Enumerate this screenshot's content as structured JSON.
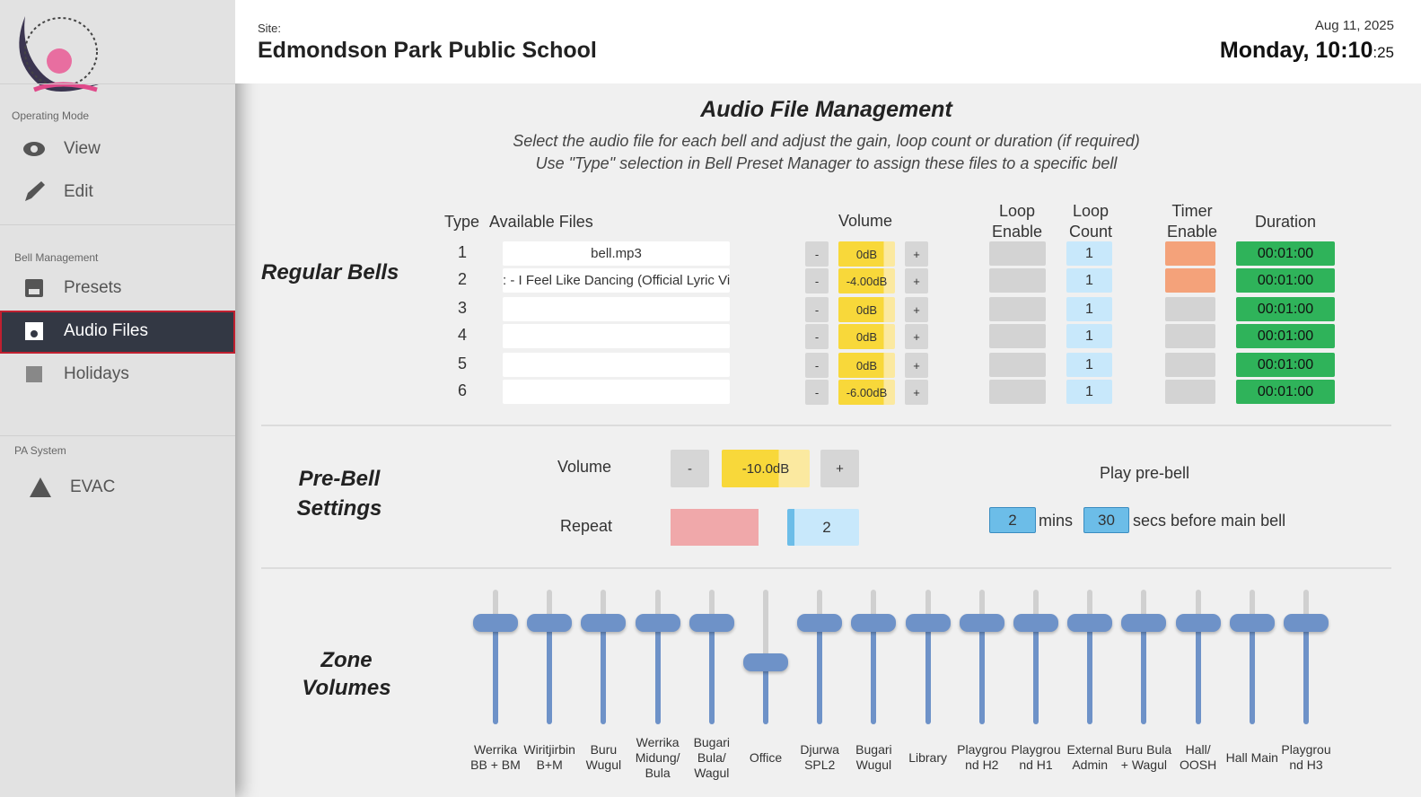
{
  "header": {
    "site_label": "Site:",
    "site_name": "Edmondson Park Public School",
    "date": "Aug 11, 2025",
    "time": "Monday, 10:10",
    "seconds": ":25"
  },
  "sidebar": {
    "sections": [
      {
        "title": "Operating Mode",
        "items": [
          "View",
          "Edit"
        ]
      },
      {
        "title": "Bell Management",
        "items": [
          "Presets",
          "Audio Files",
          "Holidays"
        ]
      },
      {
        "title": "PA System",
        "items": [
          "EVAC"
        ]
      }
    ]
  },
  "audio": {
    "title": "Audio File Management",
    "subtitle": [
      "Select the audio file for each bell and adjust the gain, loop count or duration (if required)",
      "Use \"Type\" selection in Bell Preset Manager to assign these files to a specific bell"
    ],
    "section_label": "Regular Bells",
    "minus": "-",
    "plus": "+",
    "columns": [
      "Type",
      "Available Files",
      "Volume",
      "Loop Enable",
      "Loop Count",
      "Timer Enable",
      "Duration"
    ],
    "rows": [
      {
        "type": 1,
        "file": "bell.mp3",
        "volume": "0dB",
        "loop_count": 1,
        "timer_enable": true,
        "duration": "00:01:00"
      },
      {
        "type": 2,
        "file": ": - I Feel Like Dancing (Official Lyric Video)",
        "volume": "-4.00dB",
        "loop_count": 1,
        "timer_enable": true,
        "duration": "00:01:00"
      },
      {
        "type": 3,
        "file": "",
        "volume": "0dB",
        "loop_count": 1,
        "timer_enable": false,
        "duration": "00:01:00"
      },
      {
        "type": 4,
        "file": "",
        "volume": "0dB",
        "loop_count": 1,
        "timer_enable": false,
        "duration": "00:01:00"
      },
      {
        "type": 5,
        "file": "",
        "volume": "0dB",
        "loop_count": 1,
        "timer_enable": false,
        "duration": "00:01:00"
      },
      {
        "type": 6,
        "file": "",
        "volume": "-6.00dB",
        "loop_count": 1,
        "timer_enable": false,
        "duration": "00:01:00"
      }
    ]
  },
  "prebell": {
    "title": "Pre-Bell Settings",
    "volume_label": "Volume",
    "volume": "-10.0dB",
    "repeat_label": "Repeat",
    "repeat": 2,
    "play_label": "Play pre-bell",
    "mins": 2,
    "mins_label": "mins",
    "secs": 30,
    "secs_label": "secs before main bell"
  },
  "zones": {
    "title": "Zone Volumes",
    "names": [
      "Werrika BB + BM",
      "Wiritjirbin B+M",
      "Buru Wugul",
      "Werrika Midung/ Bula",
      "Bugari Bula/ Wagul",
      "Office",
      "Djurwa SPL2",
      "Bugari Wugul",
      "Library",
      "Playground H2",
      "Playground H1",
      "External Admin",
      "Buru Bula + Wagul",
      "Hall/ OOSH",
      "Hall Main",
      "Playground H3"
    ]
  }
}
